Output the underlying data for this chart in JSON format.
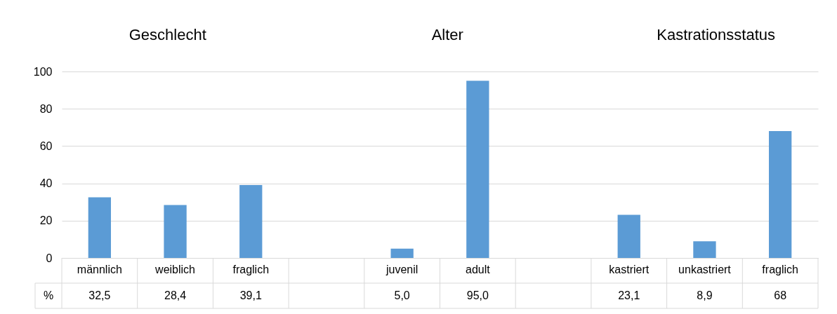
{
  "chart_data": {
    "type": "bar",
    "categories": [
      "männlich",
      "weiblich",
      "fraglich",
      null,
      "juvenil",
      "adult",
      null,
      "kastriert",
      "unkastriert",
      "fraglich"
    ],
    "values": [
      32.5,
      28.4,
      39.1,
      null,
      5.0,
      95.0,
      null,
      23.1,
      8.9,
      68
    ],
    "value_labels": [
      "32,5",
      "28,4",
      "39,1",
      null,
      "5,0",
      "95,0",
      null,
      "23,1",
      "8,9",
      "68"
    ],
    "ylabel": "%",
    "color": "#5b9bd5",
    "ylim": [
      0,
      100
    ],
    "yticks": [
      0,
      20,
      40,
      60,
      80,
      100
    ],
    "grid": "y",
    "legend": false,
    "annotations": [
      "Geschlecht",
      "Alter",
      "Kastrationsstatus"
    ]
  }
}
